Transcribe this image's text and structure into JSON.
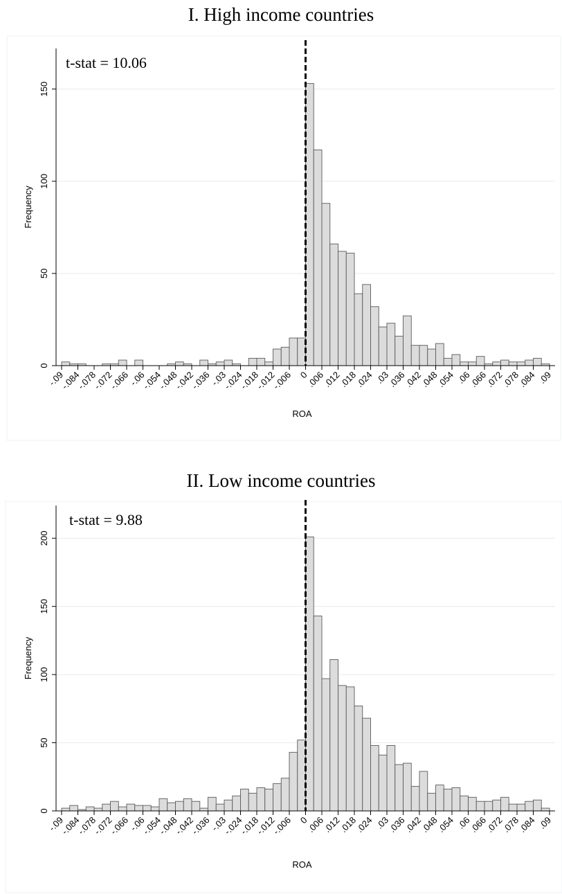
{
  "panels": [
    {
      "title": "I. High income countries"
    },
    {
      "title": "II. Low income countries"
    }
  ],
  "chart_data": [
    {
      "type": "bar",
      "title": "I. High income countries",
      "xlabel": "ROA",
      "ylabel": "Frequency",
      "annotation": "t-stat = 10.06",
      "bin_width": 0.003,
      "x_start": -0.09,
      "ylim": [
        0,
        172
      ],
      "y_ticks": [
        0,
        50,
        100,
        150
      ],
      "x_tick_labels": [
        "-.09",
        "-.084",
        "-.078",
        "-.072",
        "-.066",
        "-.06",
        "-.054",
        "-.048",
        "-.042",
        "-.036",
        "-.03",
        "-.024",
        "-.018",
        "-.012",
        "-.006",
        "0",
        ".006",
        ".012",
        ".018",
        ".024",
        ".03",
        ".036",
        ".042",
        ".048",
        ".054",
        ".06",
        ".066",
        ".072",
        ".078",
        ".084",
        ".09"
      ],
      "reference_line_x": 0,
      "values": [
        2,
        1,
        1,
        0,
        0,
        1,
        1,
        3,
        0,
        3,
        0,
        0,
        0,
        1,
        2,
        1,
        0,
        3,
        1,
        2,
        3,
        1,
        0,
        4,
        4,
        2,
        9,
        10,
        15,
        15,
        153,
        117,
        88,
        66,
        62,
        61,
        39,
        44,
        32,
        21,
        23,
        16,
        27,
        11,
        11,
        9,
        12,
        4,
        6,
        2,
        2,
        5,
        1,
        2,
        3,
        2,
        2,
        3,
        4,
        1
      ]
    },
    {
      "type": "bar",
      "title": "II. Low income countries",
      "xlabel": "ROA",
      "ylabel": "Frequency",
      "annotation": "t-stat = 9.88",
      "bin_width": 0.003,
      "x_start": -0.09,
      "ylim": [
        0,
        224
      ],
      "y_ticks": [
        0,
        50,
        100,
        150,
        200
      ],
      "x_tick_labels": [
        "-.09",
        "-.084",
        "-.078",
        "-.072",
        "-.066",
        "-.06",
        "-.054",
        "-.048",
        "-.042",
        "-.036",
        "-.03",
        "-.024",
        "-.018",
        "-.012",
        "-.006",
        "0",
        ".006",
        ".012",
        ".018",
        ".024",
        ".03",
        ".036",
        ".042",
        ".048",
        ".054",
        ".06",
        ".066",
        ".072",
        ".078",
        ".084",
        ".09"
      ],
      "reference_line_x": 0,
      "values": [
        2,
        4,
        1,
        3,
        2,
        5,
        7,
        3,
        5,
        4,
        4,
        3,
        9,
        6,
        7,
        9,
        7,
        2,
        10,
        5,
        8,
        11,
        16,
        13,
        17,
        16,
        20,
        24,
        43,
        52,
        201,
        143,
        97,
        111,
        92,
        91,
        77,
        68,
        48,
        41,
        48,
        34,
        35,
        18,
        29,
        13,
        19,
        16,
        17,
        11,
        10,
        7,
        7,
        8,
        10,
        5,
        5,
        7,
        8,
        2
      ]
    }
  ]
}
